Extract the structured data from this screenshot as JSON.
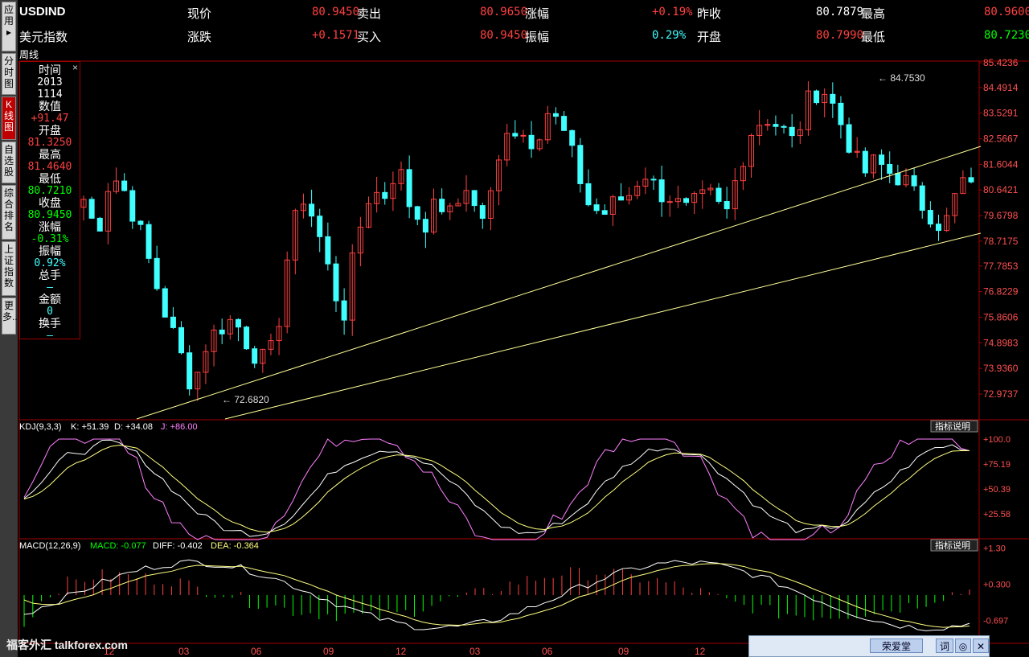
{
  "left_tabs": [
    {
      "label": "应用▸",
      "active": false
    },
    {
      "label": "分时图",
      "active": false
    },
    {
      "label": "K线图",
      "active": true
    },
    {
      "label": "自选股",
      "active": false
    },
    {
      "label": "综合排名",
      "active": false
    },
    {
      "label": "上证指数",
      "active": false
    },
    {
      "label": "更多..",
      "active": false
    }
  ],
  "header": {
    "symbol": "USDIND",
    "name": "美元指数",
    "row1": [
      {
        "label": "现价",
        "value": "80.9450"
      },
      {
        "label": "卖出",
        "value": "80.9650"
      },
      {
        "label": "涨幅",
        "value": "+0.19%"
      },
      {
        "label": "昨收",
        "value": "80.7879"
      },
      {
        "label": "最高",
        "value": "80.9600"
      }
    ],
    "row2": [
      {
        "label": "涨跌",
        "value": "+0.1571"
      },
      {
        "label": "买入",
        "value": "80.9450"
      },
      {
        "label": "振幅",
        "value": "0.29%"
      },
      {
        "label": "开盘",
        "value": "80.7990"
      },
      {
        "label": "最低",
        "value": "80.7230"
      }
    ]
  },
  "period": "周线",
  "info_panel": {
    "close": "×",
    "items": [
      {
        "label": "时间",
        "value": "2013",
        "value2": "1114",
        "color": "#ffffff"
      },
      {
        "label": "数值",
        "value": "+91.47",
        "color": "#ff4040"
      },
      {
        "label": "开盘",
        "value": "81.3250",
        "color": "#ff4040"
      },
      {
        "label": "最高",
        "value": "81.4640",
        "color": "#ff4040"
      },
      {
        "label": "最低",
        "value": "80.7210",
        "color": "#00ff00"
      },
      {
        "label": "收盘",
        "value": "80.9450",
        "color": "#00ff00"
      },
      {
        "label": "涨幅",
        "value": "-0.31%",
        "color": "#00ff00"
      },
      {
        "label": "振幅",
        "value": "0.92%",
        "color": "#40ffff"
      },
      {
        "label": "总手",
        "value": "—",
        "color": "#40ffff"
      },
      {
        "label": "金额",
        "value": "0",
        "color": "#40ffff"
      },
      {
        "label": "换手",
        "value": "—",
        "color": "#40ffff"
      }
    ]
  },
  "price_axis": [
    "85.4236",
    "84.4914",
    "83.5291",
    "82.5667",
    "81.6044",
    "80.6421",
    "79.6798",
    "78.7175",
    "77.7853",
    "76.8229",
    "75.8606",
    "74.8983",
    "73.9360",
    "72.9737"
  ],
  "annotations": {
    "high": "84.7530",
    "low": "72.6820"
  },
  "kdj": {
    "label": "KDJ(9,3,3)",
    "k": "K: +51.39",
    "d": "D: +34.08",
    "j": "J: +86.00",
    "axis": [
      "+100.0",
      "+75.19",
      "+50.39",
      "+25.58"
    ],
    "help": "指标说明"
  },
  "macd": {
    "label": "MACD(12,26,9)",
    "macd": "MACD: -0.077",
    "diff": "DIFF: -0.402",
    "dea": "DEA: -0.364",
    "axis": [
      "+1.30",
      "+0.300",
      "-0.697"
    ],
    "help": "指标说明"
  },
  "time_axis": [
    "12",
    "03",
    "06",
    "09",
    "12",
    "03",
    "06",
    "09",
    "12"
  ],
  "watermark": "福客外汇 talkforex.com",
  "taskbar": {
    "title": "荣爱堂",
    "btn1": "词",
    "btn2": "◎",
    "btn3": "✕"
  },
  "colors": {
    "up": "#ff4040",
    "down": "#40ffff",
    "grid": "#a00000",
    "trend": "#ffff99"
  }
}
